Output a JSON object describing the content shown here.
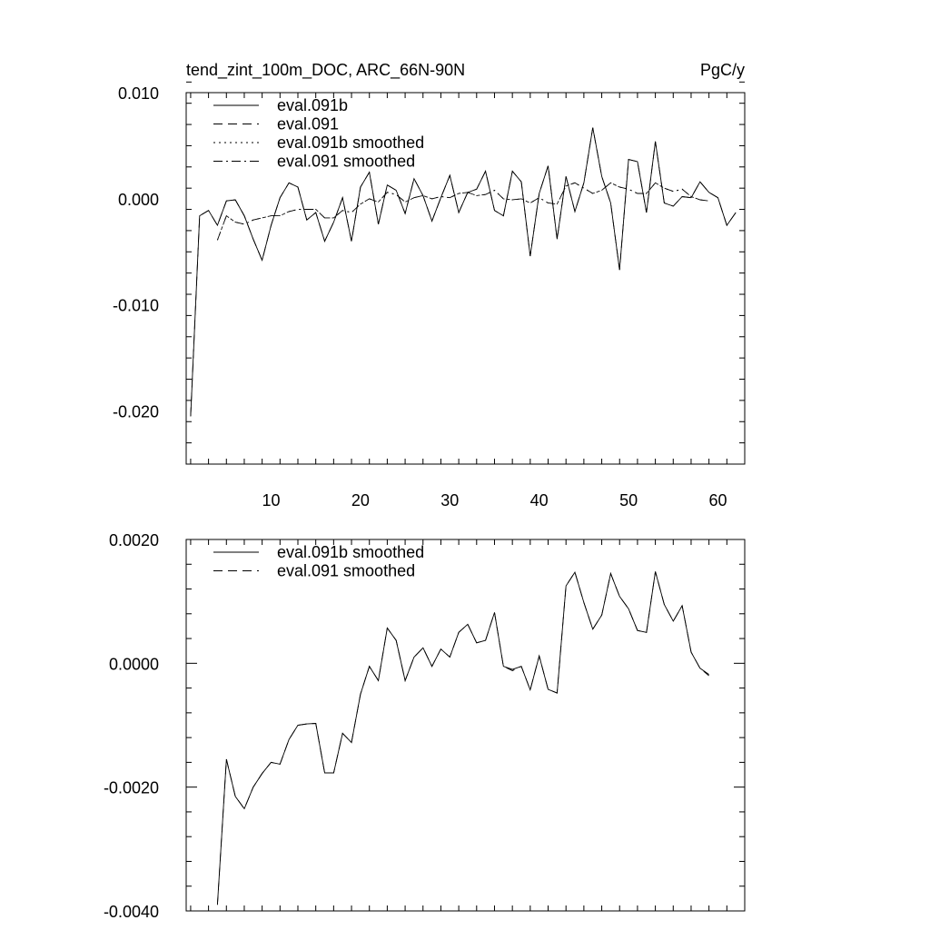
{
  "chart_data": [
    {
      "type": "line",
      "title_left": "tend_zint_100m_DOC, ARC_66N-90N",
      "title_right": "PgC/y",
      "xlim": [
        0.5,
        63
      ],
      "ylim": [
        -0.025,
        0.01
      ],
      "xticks": [
        10,
        20,
        30,
        40,
        50,
        60
      ],
      "yticks": [
        -0.02,
        -0.01,
        0.0,
        0.01
      ],
      "ytick_labels": [
        "-0.020",
        "-0.010",
        "0.000",
        "0.010"
      ],
      "legend_position": "top-left",
      "series": [
        {
          "name": "eval.091b",
          "style": "solid",
          "x": [
            1,
            2,
            3,
            4,
            5,
            6,
            7,
            8,
            9,
            10,
            11,
            12,
            13,
            14,
            15,
            16,
            17,
            18,
            19,
            20,
            21,
            22,
            23,
            24,
            25,
            26,
            27,
            28,
            29,
            30,
            31,
            32,
            33,
            34,
            35,
            36,
            37,
            38,
            39,
            40,
            41,
            42,
            43,
            44,
            45,
            46,
            47,
            48,
            49,
            50,
            51,
            52,
            53,
            54,
            55,
            56,
            57,
            58,
            59,
            60,
            61,
            62
          ],
          "y": [
            -0.0205,
            -0.0016,
            -0.0011,
            -0.0025,
            -0.0002,
            -0.0001,
            -0.0016,
            -0.0038,
            -0.0058,
            -0.0025,
            0.0001,
            0.0015,
            0.0011,
            -0.002,
            -0.0013,
            -0.004,
            -0.0022,
            0.0001,
            -0.004,
            0.0011,
            0.0025,
            -0.0024,
            0.0013,
            0.0008,
            -0.0014,
            0.0019,
            0.0003,
            -0.0021,
            0.0001,
            0.0022,
            -0.0013,
            0.0006,
            0.0009,
            0.0026,
            -0.0011,
            -0.0016,
            0.0026,
            0.0016,
            -0.0054,
            0.0005,
            0.0031,
            -0.0038,
            0.0021,
            -0.0012,
            0.0015,
            0.0067,
            0.0021,
            -0.0004,
            -0.0067,
            0.0037,
            0.0035,
            -0.0013,
            0.0054,
            -0.0004,
            -0.0007,
            0.0002,
            0.0001,
            0.0016,
            0.0006,
            0.0001,
            -0.0025,
            -0.0013
          ]
        },
        {
          "name": "eval.091",
          "style": "dashed",
          "x": [
            1,
            2,
            3,
            4,
            5,
            6,
            7,
            8,
            9,
            10,
            11,
            12,
            13,
            14,
            15,
            16,
            17,
            18,
            19,
            20,
            21,
            22,
            23,
            24,
            25,
            26,
            27,
            28,
            29,
            30,
            31,
            32,
            33,
            34,
            35,
            36,
            37,
            38,
            39,
            40,
            41,
            42,
            43,
            44,
            45,
            46,
            47,
            48,
            49,
            50,
            51,
            52,
            53,
            54,
            55,
            56,
            57,
            58,
            59,
            60,
            61,
            62
          ],
          "y": [
            -0.0205,
            -0.0016,
            -0.0011,
            -0.0025,
            -0.0002,
            -0.0001,
            -0.0016,
            -0.0038,
            -0.0058,
            -0.0025,
            0.0001,
            0.0015,
            0.0011,
            -0.002,
            -0.0013,
            -0.004,
            -0.0022,
            0.0001,
            -0.004,
            0.0011,
            0.0025,
            -0.0024,
            0.0013,
            0.0008,
            -0.0014,
            0.0019,
            0.0003,
            -0.0021,
            0.0001,
            0.0022,
            -0.0013,
            0.0006,
            0.0009,
            0.0026,
            -0.0011,
            -0.0016,
            0.0026,
            0.0016,
            -0.0054,
            0.0005,
            0.0031,
            -0.0038,
            0.0021,
            -0.0012,
            0.0015,
            0.0067,
            0.0021,
            -0.0004,
            -0.0067,
            0.0037,
            0.0035,
            -0.0013,
            0.0054,
            -0.0004,
            -0.0007,
            0.0002,
            0.0001,
            0.0016,
            0.0006,
            0.0001,
            -0.0025,
            -0.0013
          ]
        },
        {
          "name": "eval.091b smoothed",
          "style": "dotted",
          "x": [
            4,
            5,
            6,
            7,
            8,
            9,
            10,
            11,
            12,
            13,
            14,
            15,
            16,
            17,
            18,
            19,
            20,
            21,
            22,
            23,
            24,
            25,
            26,
            27,
            28,
            29,
            30,
            31,
            32,
            33,
            34,
            35,
            36,
            37,
            38,
            39,
            40,
            41,
            42,
            43,
            44,
            45,
            46,
            47,
            48,
            49,
            50,
            51,
            52,
            53,
            54,
            55,
            56,
            57,
            58,
            59
          ],
          "y": [
            -0.0039,
            -0.0016,
            -0.0022,
            -0.0024,
            -0.002,
            -0.0018,
            -0.0016,
            -0.0016,
            -0.0012,
            -0.001,
            -0.001,
            -0.001,
            -0.0018,
            -0.0018,
            -0.0011,
            -0.0013,
            -0.0005,
            -0.0,
            -0.0003,
            0.0006,
            0.0004,
            -0.0003,
            0.0001,
            0.0003,
            -0.0,
            0.0002,
            0.0001,
            0.0005,
            0.0006,
            0.0003,
            0.0004,
            0.0008,
            -0.0,
            -0.0001,
            -0.0,
            -0.0004,
            0.0001,
            -0.0004,
            -0.0005,
            0.0012,
            0.0015,
            0.001,
            0.0005,
            0.0008,
            0.0015,
            0.0011,
            0.0009,
            0.0005,
            0.0005,
            0.0015,
            0.001,
            0.0007,
            0.0009,
            0.0002,
            -0.0001,
            -0.0002
          ]
        },
        {
          "name": "eval.091 smoothed",
          "style": "dashdot",
          "x": [
            4,
            5,
            6,
            7,
            8,
            9,
            10,
            11,
            12,
            13,
            14,
            15,
            16,
            17,
            18,
            19,
            20,
            21,
            22,
            23,
            24,
            25,
            26,
            27,
            28,
            29,
            30,
            31,
            32,
            33,
            34,
            35,
            36,
            37,
            38,
            39,
            40,
            41,
            42,
            43,
            44,
            45,
            46,
            47,
            48,
            49,
            50,
            51,
            52,
            53,
            54,
            55,
            56,
            57,
            58,
            59
          ],
          "y": [
            -0.0039,
            -0.0016,
            -0.0022,
            -0.0024,
            -0.002,
            -0.0018,
            -0.0016,
            -0.0016,
            -0.0012,
            -0.001,
            -0.001,
            -0.001,
            -0.0018,
            -0.0018,
            -0.0011,
            -0.0013,
            -0.0005,
            -0.0,
            -0.0003,
            0.0006,
            0.0004,
            -0.0003,
            0.0001,
            0.0003,
            -0.0,
            0.0002,
            0.0001,
            0.0005,
            0.0006,
            0.0003,
            0.0004,
            0.0008,
            -0.0,
            -0.0001,
            -0.0,
            -0.0004,
            0.0001,
            -0.0004,
            -0.0005,
            0.0012,
            0.0015,
            0.001,
            0.0005,
            0.0008,
            0.0015,
            0.0011,
            0.0009,
            0.0005,
            0.0005,
            0.0015,
            0.001,
            0.0007,
            0.0009,
            0.0002,
            -0.0001,
            -0.0002
          ]
        }
      ]
    },
    {
      "type": "line",
      "xlim": [
        0.5,
        63
      ],
      "ylim": [
        -0.004,
        0.002
      ],
      "xticks": [
        10,
        20,
        30,
        40,
        50,
        60
      ],
      "yticks": [
        -0.004,
        -0.002,
        0.0,
        0.002
      ],
      "ytick_labels": [
        "-0.0040",
        "-0.0020",
        "0.0000",
        "0.0020"
      ],
      "legend_position": "top-left",
      "series": [
        {
          "name": "eval.091b smoothed",
          "style": "solid",
          "x": [
            4,
            5,
            6,
            7,
            8,
            9,
            10,
            11,
            12,
            13,
            14,
            15,
            16,
            17,
            18,
            19,
            20,
            21,
            22,
            23,
            24,
            25,
            26,
            27,
            28,
            29,
            30,
            31,
            32,
            33,
            34,
            35,
            36,
            37,
            38,
            39,
            40,
            41,
            42,
            43,
            44,
            45,
            46,
            47,
            48,
            49,
            50,
            51,
            52,
            53,
            54,
            55,
            56,
            57,
            58,
            59
          ],
          "y": [
            -0.0039,
            -0.00155,
            -0.00215,
            -0.00235,
            -0.002,
            -0.00178,
            -0.0016,
            -0.00163,
            -0.00123,
            -0.001,
            -0.00098,
            -0.00097,
            -0.00177,
            -0.00177,
            -0.00113,
            -0.00128,
            -0.0005,
            -5e-05,
            -0.00028,
            0.00057,
            0.00037,
            -0.00028,
            0.0001,
            0.00025,
            -5e-05,
            0.00023,
            0.0001,
            0.0005,
            0.00063,
            0.00033,
            0.00037,
            0.00082,
            -5e-05,
            -0.0001,
            -5e-05,
            -0.00043,
            0.00012,
            -0.00042,
            -0.00048,
            0.00125,
            0.00147,
            0.00098,
            0.00055,
            0.00078,
            0.00145,
            0.00108,
            0.00088,
            0.00053,
            0.0005,
            0.00148,
            0.00095,
            0.00068,
            0.00093,
            0.00018,
            -8e-05,
            -0.00018
          ]
        },
        {
          "name": "eval.091 smoothed",
          "style": "dashed",
          "x": [
            4,
            5,
            6,
            7,
            8,
            9,
            10,
            11,
            12,
            13,
            14,
            15,
            16,
            17,
            18,
            19,
            20,
            21,
            22,
            23,
            24,
            25,
            26,
            27,
            28,
            29,
            30,
            31,
            32,
            33,
            34,
            35,
            36,
            37,
            38,
            39,
            40,
            41,
            42,
            43,
            44,
            45,
            46,
            47,
            48,
            49,
            50,
            51,
            52,
            53,
            54,
            55,
            56,
            57,
            58,
            59
          ],
          "y": [
            -0.0039,
            -0.00155,
            -0.00215,
            -0.00235,
            -0.002,
            -0.00178,
            -0.0016,
            -0.00163,
            -0.00123,
            -0.001,
            -0.00098,
            -0.00097,
            -0.00177,
            -0.00177,
            -0.00113,
            -0.00128,
            -0.0005,
            -5e-05,
            -0.00028,
            0.00057,
            0.00037,
            -0.00028,
            0.0001,
            0.00025,
            -5e-05,
            0.00023,
            0.0001,
            0.0005,
            0.00063,
            0.00033,
            0.00037,
            0.00082,
            -5e-05,
            -0.00012,
            -5e-05,
            -0.00043,
            0.00012,
            -0.00042,
            -0.00048,
            0.00125,
            0.00147,
            0.00098,
            0.00055,
            0.00078,
            0.00145,
            0.00108,
            0.00088,
            0.00053,
            0.0005,
            0.00148,
            0.00095,
            0.00068,
            0.00093,
            0.00018,
            -8e-05,
            -0.0002
          ]
        }
      ]
    }
  ]
}
